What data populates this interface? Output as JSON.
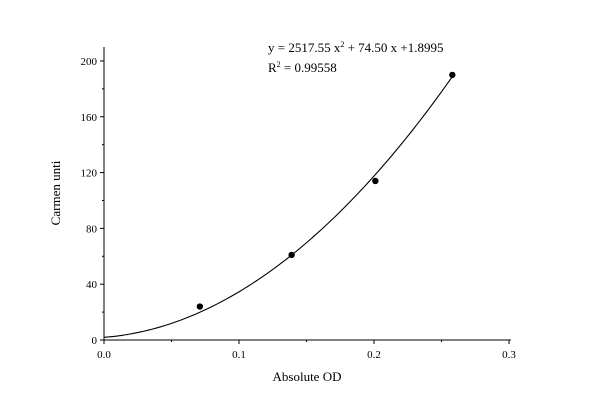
{
  "chart_data": {
    "type": "scatter",
    "xlabel": "Absolute OD",
    "ylabel": "Carmen unti",
    "xlim": [
      0,
      0.3
    ],
    "ylim": [
      0,
      210
    ],
    "x_ticks": [
      0.0,
      0.1,
      0.2,
      0.3
    ],
    "x_tick_labels": [
      "0.0",
      "0.1",
      "0.2",
      "0.3"
    ],
    "y_ticks": [
      0,
      40,
      80,
      120,
      160,
      200
    ],
    "y_tick_labels": [
      "0",
      "40",
      "80",
      "120",
      "160",
      "200"
    ],
    "grid": false,
    "legend": "none",
    "points": [
      {
        "x": 0.071,
        "y": 24
      },
      {
        "x": 0.139,
        "y": 61
      },
      {
        "x": 0.201,
        "y": 114
      },
      {
        "x": 0.258,
        "y": 190
      }
    ],
    "fit": {
      "type": "quadratic",
      "a": 2517.55,
      "b": 74.5,
      "c": 1.8995,
      "x_range": [
        0,
        0.258
      ]
    },
    "annotation": {
      "equation_prefix": "y = 2517.55 x",
      "equation_exp": "2",
      "equation_suffix": " + 74.50 x +1.8995",
      "r2_label": "R",
      "r2_exp": "2",
      "r2_value": " = 0.99558"
    }
  }
}
